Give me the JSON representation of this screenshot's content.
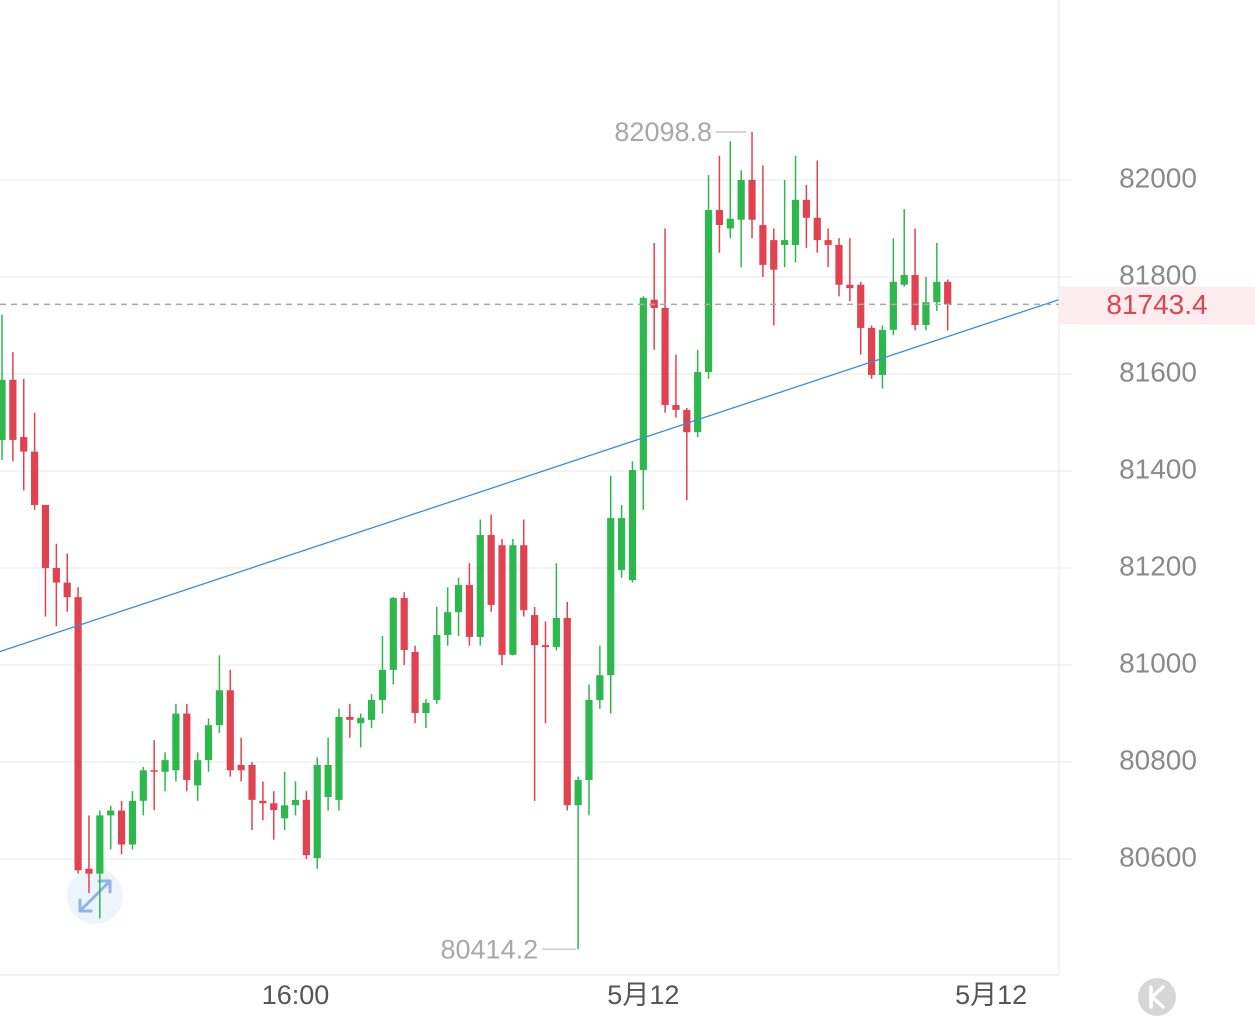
{
  "chart_data": {
    "type": "candlestick",
    "categories": [
      null,
      null,
      null,
      null,
      null,
      null,
      null,
      null,
      null,
      null,
      null,
      null,
      null,
      null,
      null,
      null,
      null,
      null,
      null,
      null,
      null,
      null,
      null,
      null,
      null,
      null,
      null,
      "16:00",
      null,
      null,
      null,
      null,
      null,
      null,
      null,
      null,
      null,
      null,
      null,
      null,
      null,
      null,
      null,
      null,
      null,
      null,
      null,
      null,
      null,
      null,
      null,
      null,
      null,
      null,
      null,
      null,
      null,
      null,
      null,
      "5月12",
      null,
      null,
      null,
      null,
      null,
      null,
      null,
      null,
      null,
      null,
      null,
      null,
      null,
      null,
      null,
      null,
      null,
      null,
      null,
      null,
      null,
      null,
      null,
      null,
      null,
      null,
      null,
      null,
      null,
      null,
      null,
      "5月12",
      null,
      null,
      null,
      null
    ],
    "open": [
      81464,
      81588,
      81470,
      81440,
      81330,
      81200,
      81170,
      81140,
      80580,
      80570,
      80690,
      80700,
      80630,
      80720,
      80783,
      80780,
      80783,
      80900,
      80752,
      80804,
      80876,
      80948,
      80794,
      80794,
      80720,
      80715,
      80684,
      80711,
      80722,
      80602,
      80728,
      80722,
      80893,
      80880,
      80887,
      80928,
      80990,
      81138,
      81027,
      80901,
      80928,
      81062,
      81109,
      81165,
      81058,
      81268,
      81247,
      81021,
      81247,
      81103,
      81041,
      81037,
      81097,
      80711,
      80763,
      80928,
      80979,
      81196,
      81175,
      81402,
      81753,
      81736,
      81536,
      81526,
      81480,
      81604,
      81938,
      81900,
      81918,
      82000,
      81907,
      81876,
      81866,
      81866,
      81959,
      81922,
      81876,
      81866,
      81784,
      81784,
      81695,
      81598,
      81691,
      81784,
      81804,
      81701,
      81748,
      81790,
      null,
      null,
      null,
      null,
      null,
      null,
      null,
      null
    ],
    "high": [
      81722,
      81645,
      81590,
      81520,
      81330,
      81250,
      81230,
      81160,
      80690,
      80700,
      80710,
      80720,
      80740,
      80790,
      80845,
      80820,
      80920,
      80920,
      80820,
      80890,
      81020,
      80990,
      80850,
      80800,
      80760,
      80740,
      80780,
      80760,
      80740,
      80810,
      80850,
      80910,
      80920,
      80900,
      80940,
      81060,
      81140,
      81150,
      81040,
      80930,
      81120,
      81160,
      81180,
      81210,
      81300,
      81310,
      81260,
      81260,
      81300,
      81120,
      81090,
      81210,
      81130,
      80770,
      80960,
      81040,
      81390,
      81330,
      81420,
      81760,
      81870,
      81900,
      81640,
      81530,
      81650,
      82010,
      82050,
      82080,
      82020,
      82098.8,
      82030,
      81900,
      82000,
      82050,
      81990,
      82040,
      81900,
      81880,
      81880,
      81790,
      81700,
      81700,
      81880,
      81940,
      81900,
      81800,
      81870,
      81795,
      null,
      null,
      null,
      null,
      null,
      null,
      null,
      null
    ],
    "low": [
      81423,
      81420,
      81360,
      81320,
      81100,
      81080,
      81110,
      80570,
      80530,
      80478,
      80620,
      80610,
      80620,
      80690,
      80701,
      80740,
      80760,
      80740,
      80720,
      80780,
      80860,
      80770,
      80760,
      80660,
      80680,
      80640,
      80660,
      80690,
      80600,
      80580,
      80700,
      80700,
      80850,
      80830,
      80870,
      80900,
      80960,
      81000,
      80880,
      80870,
      80920,
      81040,
      81060,
      81040,
      81040,
      81110,
      81000,
      81020,
      81100,
      80720,
      80880,
      81030,
      80700,
      80414.2,
      80690,
      80910,
      80900,
      81180,
      81170,
      81320,
      81650,
      81520,
      81510,
      81340,
      81470,
      81590,
      81850,
      81880,
      81820,
      81880,
      81800,
      81700,
      81820,
      81830,
      81860,
      81850,
      81820,
      81760,
      81750,
      81640,
      81590,
      81570,
      81680,
      81780,
      81690,
      81690,
      81730,
      81690,
      null,
      null,
      null,
      null,
      null,
      null,
      null,
      null
    ],
    "close": [
      81588,
      81464,
      81440,
      81330,
      81200,
      81170,
      81140,
      80577,
      80570,
      80690,
      80700,
      80630,
      80720,
      80783,
      80780,
      80804,
      80900,
      80763,
      80804,
      80876,
      80948,
      80783,
      80783,
      80722,
      80715,
      80701,
      80711,
      80722,
      80608,
      80794,
      80794,
      80893,
      80887,
      80891,
      80928,
      80990,
      81138,
      81031,
      80901,
      80922,
      81062,
      81109,
      81165,
      81058,
      81268,
      81124,
      81021,
      81247,
      81113,
      81041,
      81037,
      81097,
      80711,
      80763,
      80928,
      80979,
      81303,
      81303,
      81402,
      81757,
      81736,
      81536,
      81526,
      81480,
      81604,
      81938,
      81907,
      81920,
      82000,
      81918,
      81825,
      81815,
      81876,
      81959,
      81922,
      81876,
      81866,
      81784,
      81777,
      81695,
      81598,
      81691,
      81790,
      81804,
      81701,
      81748,
      81790,
      81743.4,
      null,
      null,
      null,
      null,
      null,
      null,
      null,
      null
    ],
    "up_color": "#2db84d",
    "down_color": "#e0424f",
    "ylim": [
      80361,
      82371
    ],
    "yticks": [
      80600,
      80800,
      81000,
      81200,
      81400,
      81600,
      81800,
      82000
    ],
    "grid": true,
    "last_price": 81743.4,
    "annotations": {
      "max": 82098.8,
      "min": 80414.2
    },
    "trendline": {
      "color": "#3a8fd6",
      "points": [
        {
          "x": -0.3,
          "y": 81027
        },
        {
          "x": 97.2,
          "y": 81753
        }
      ]
    }
  }
}
